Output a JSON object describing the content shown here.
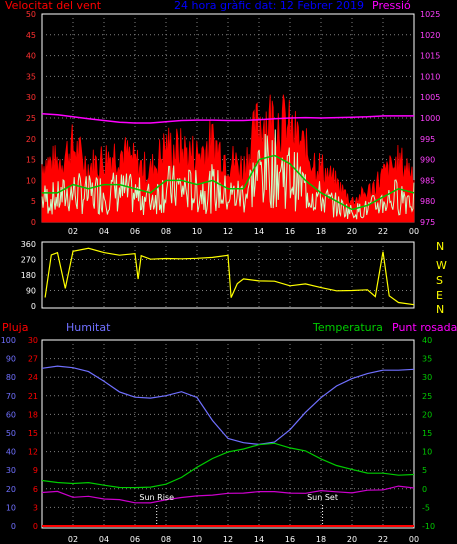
{
  "header": {
    "left": "Velocitat del vent",
    "center": "24 hora gràfic dat:  12 Febrer 2019",
    "right": "Pressió"
  },
  "middle_labels": {
    "pluja": "Pluja",
    "humitat": "Humitat",
    "temperatura": "Temperatura",
    "punt_rosada": "Punt rosada"
  },
  "direction_letters": [
    "N",
    "W",
    "S",
    "E",
    "N"
  ],
  "colors": {
    "background": "#000000",
    "wind_gust": "#ff0000",
    "wind_avg": "#00c000",
    "wind_speed": "#c8ffc8",
    "pressure": "#ff00ff",
    "direction": "#ffff00",
    "rain": "#ff0000",
    "humidity": "#7070ff",
    "temperature": "#00cc00",
    "dewpoint": "#cc00cc",
    "grid": "#808080",
    "axis_left": "#ff3030",
    "axis_right": "#ff40ff"
  },
  "chart_data": [
    {
      "type": "line",
      "name": "wind",
      "x_ticks": [
        "02",
        "04",
        "06",
        "08",
        "10",
        "12",
        "14",
        "16",
        "18",
        "20",
        "22",
        "00"
      ],
      "y_left_ticks": [
        "0",
        "5",
        "10",
        "15",
        "20",
        "25",
        "30",
        "35",
        "40",
        "45",
        "50"
      ],
      "y_right_ticks": [
        "975",
        "980",
        "985",
        "990",
        "995",
        "1000",
        "1005",
        "1010",
        "1015",
        "1020",
        "1025"
      ],
      "ylim_left": [
        0,
        50
      ],
      "ylim_right": [
        975,
        1025
      ],
      "x_hours": [
        1,
        2,
        3,
        4,
        5,
        6,
        7,
        8,
        9,
        10,
        11,
        12,
        13,
        14,
        15,
        16,
        17,
        18,
        19,
        20,
        21,
        22,
        23,
        24
      ],
      "series": [
        {
          "key": "gust",
          "values": [
            14,
            18,
            13,
            15,
            17,
            14,
            12,
            18,
            17,
            16,
            19,
            15,
            13,
            24,
            25,
            22,
            17,
            13,
            9,
            5,
            7,
            11,
            14,
            12
          ]
        },
        {
          "key": "avg",
          "values": [
            7,
            9,
            8,
            9,
            9,
            8,
            7,
            10,
            10,
            9,
            10,
            8,
            8,
            15,
            16,
            14,
            10,
            7,
            5,
            3,
            4,
            6,
            8,
            7
          ]
        },
        {
          "key": "pressure",
          "values": [
            1001.0,
            1000.8,
            1000.3,
            999.8,
            999.4,
            999.0,
            998.8,
            998.8,
            999.1,
            999.4,
            999.5,
            999.5,
            999.4,
            999.4,
            999.6,
            999.8,
            1000.0,
            1000.1,
            1000.0,
            1000.1,
            1000.2,
            1000.3,
            1000.5,
            1000.5
          ]
        }
      ]
    },
    {
      "type": "line",
      "name": "wind-direction",
      "y_ticks": [
        "0",
        "90",
        "180",
        "270",
        "360"
      ],
      "ylim": [
        0,
        360
      ],
      "x_hours": [
        0.2,
        0.6,
        1.0,
        1.5,
        2.0,
        3.0,
        4.0,
        5.0,
        6.0,
        6.2,
        6.4,
        7.0,
        8.0,
        9.0,
        10.0,
        11.0,
        12.0,
        12.2,
        12.6,
        13.0,
        14.0,
        15.0,
        16.0,
        17.0,
        18.0,
        19.0,
        20.0,
        21.0,
        21.5,
        22.0,
        22.4,
        23.0,
        24.0
      ],
      "values": [
        50,
        300,
        310,
        100,
        320,
        330,
        310,
        290,
        300,
        160,
        290,
        270,
        280,
        270,
        275,
        280,
        290,
        50,
        130,
        160,
        150,
        140,
        120,
        130,
        110,
        90,
        90,
        90,
        50,
        320,
        60,
        20,
        10
      ]
    },
    {
      "type": "line",
      "name": "weather",
      "x_ticks": [
        "02",
        "04",
        "06",
        "08",
        "10",
        "12",
        "14",
        "16",
        "18",
        "20",
        "22",
        "00"
      ],
      "humidity_ticks": [
        "0",
        "10",
        "20",
        "30",
        "40",
        "50",
        "60",
        "70",
        "80",
        "90",
        "100"
      ],
      "rain_ticks": [
        "0",
        "3",
        "6",
        "9",
        "12",
        "15",
        "18",
        "21",
        "24",
        "27",
        "30"
      ],
      "temp_ticks": [
        "-10",
        "-5",
        "0",
        "5",
        "10",
        "15",
        "20",
        "25",
        "30",
        "35",
        "40"
      ],
      "ylim_humidity": [
        0,
        100
      ],
      "ylim_temp": [
        -10,
        40
      ],
      "x_hours": [
        0,
        1,
        2,
        3,
        4,
        5,
        6,
        7,
        8,
        9,
        10,
        11,
        12,
        13,
        14,
        15,
        16,
        17,
        18,
        19,
        20,
        21,
        22,
        23,
        24
      ],
      "series": [
        {
          "key": "humidity",
          "values": [
            85,
            86,
            85,
            83,
            78,
            72,
            69,
            69,
            70,
            72,
            69,
            57,
            47,
            45,
            44,
            45,
            52,
            61,
            69,
            75,
            79,
            82,
            84,
            84,
            84
          ]
        },
        {
          "key": "temperature",
          "values": [
            2,
            1.5,
            1.5,
            1.5,
            1,
            0.5,
            0.5,
            0.5,
            1,
            3,
            6,
            8,
            10,
            11,
            12,
            12,
            11,
            10,
            8,
            6,
            5,
            4,
            4,
            3.5,
            4
          ]
        },
        {
          "key": "dewpoint",
          "values": [
            -1,
            -1,
            -2,
            -2,
            -3,
            -3,
            -3.5,
            -3.5,
            -3,
            -2.5,
            -2,
            -1.5,
            -1.5,
            -1,
            -1,
            -0.5,
            -1,
            -1,
            -0.5,
            -0.5,
            -1,
            -0.5,
            0,
            0.5,
            0.5
          ]
        },
        {
          "key": "rain",
          "values": [
            0,
            0,
            0,
            0,
            0,
            0,
            0,
            0,
            0,
            0,
            0,
            0,
            0,
            0,
            0,
            0,
            0,
            0,
            0,
            0,
            0,
            0,
            0,
            0,
            0
          ]
        }
      ],
      "markers": [
        {
          "label": "Sun Rise",
          "hour": 7.4
        },
        {
          "label": "Sun Set",
          "hour": 18.1
        }
      ]
    }
  ]
}
